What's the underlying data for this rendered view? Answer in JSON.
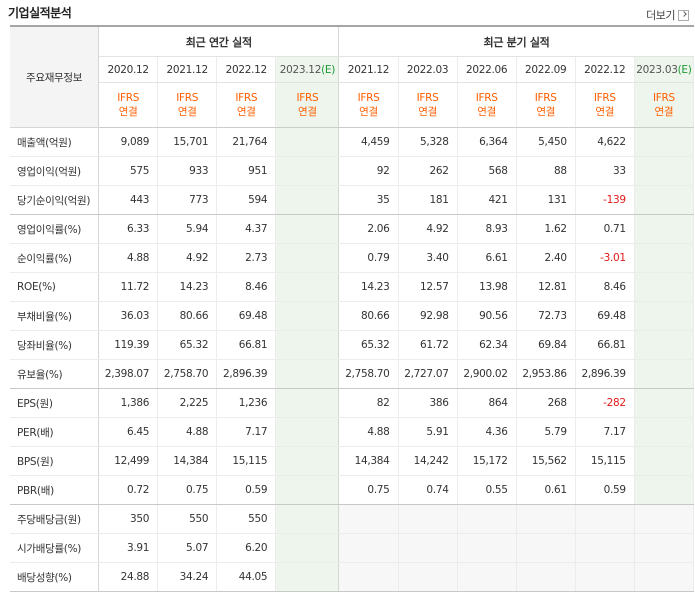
{
  "section_title": "기업실적분석",
  "more_label": "더보기",
  "header": {
    "side_label": "주요재무정보",
    "annual_group": "최근 연간 실적",
    "quarter_group": "최근 분기 실적",
    "annual_periods": [
      "2020.12",
      "2021.12",
      "2022.12",
      "2023.12"
    ],
    "annual_est_mark": "(E)",
    "quarter_periods": [
      "2021.12",
      "2022.03",
      "2022.06",
      "2022.09",
      "2022.12",
      "2023.03"
    ],
    "quarter_est_mark": "(E)",
    "ifrs_line1": "IFRS",
    "ifrs_line2": "연결"
  },
  "rows": [
    {
      "label": "매출액(억원)",
      "annual": [
        "9,089",
        "15,701",
        "21,764",
        ""
      ],
      "quarter": [
        "4,459",
        "5,328",
        "6,364",
        "5,450",
        "4,622",
        ""
      ]
    },
    {
      "label": "영업이익(억원)",
      "annual": [
        "575",
        "933",
        "951",
        ""
      ],
      "quarter": [
        "92",
        "262",
        "568",
        "88",
        "33",
        ""
      ]
    },
    {
      "label": "당기순이익(억원)",
      "annual": [
        "443",
        "773",
        "594",
        ""
      ],
      "quarter": [
        "35",
        "181",
        "421",
        "131",
        "-139",
        ""
      ]
    },
    {
      "label": "영업이익률(%)",
      "annual": [
        "6.33",
        "5.94",
        "4.37",
        ""
      ],
      "quarter": [
        "2.06",
        "4.92",
        "8.93",
        "1.62",
        "0.71",
        ""
      ]
    },
    {
      "label": "순이익률(%)",
      "annual": [
        "4.88",
        "4.92",
        "2.73",
        ""
      ],
      "quarter": [
        "0.79",
        "3.40",
        "6.61",
        "2.40",
        "-3.01",
        ""
      ]
    },
    {
      "label": "ROE(%)",
      "annual": [
        "11.72",
        "14.23",
        "8.46",
        ""
      ],
      "quarter": [
        "14.23",
        "12.57",
        "13.98",
        "12.81",
        "8.46",
        ""
      ]
    },
    {
      "label": "부채비율(%)",
      "annual": [
        "36.03",
        "80.66",
        "69.48",
        ""
      ],
      "quarter": [
        "80.66",
        "92.98",
        "90.56",
        "72.73",
        "69.48",
        ""
      ]
    },
    {
      "label": "당좌비율(%)",
      "annual": [
        "119.39",
        "65.32",
        "66.81",
        ""
      ],
      "quarter": [
        "65.32",
        "61.72",
        "62.34",
        "69.84",
        "66.81",
        ""
      ]
    },
    {
      "label": "유보율(%)",
      "annual": [
        "2,398.07",
        "2,758.70",
        "2,896.39",
        ""
      ],
      "quarter": [
        "2,758.70",
        "2,727.07",
        "2,900.02",
        "2,953.86",
        "2,896.39",
        ""
      ]
    },
    {
      "label": "EPS(원)",
      "annual": [
        "1,386",
        "2,225",
        "1,236",
        ""
      ],
      "quarter": [
        "82",
        "386",
        "864",
        "268",
        "-282",
        ""
      ]
    },
    {
      "label": "PER(배)",
      "annual": [
        "6.45",
        "4.88",
        "7.17",
        ""
      ],
      "quarter": [
        "4.88",
        "5.91",
        "4.36",
        "5.79",
        "7.17",
        ""
      ]
    },
    {
      "label": "BPS(원)",
      "annual": [
        "12,499",
        "14,384",
        "15,115",
        ""
      ],
      "quarter": [
        "14,384",
        "14,242",
        "15,172",
        "15,562",
        "15,115",
        ""
      ]
    },
    {
      "label": "PBR(배)",
      "annual": [
        "0.72",
        "0.75",
        "0.59",
        ""
      ],
      "quarter": [
        "0.75",
        "0.74",
        "0.55",
        "0.61",
        "0.59",
        ""
      ]
    },
    {
      "label": "주당배당금(원)",
      "annual": [
        "350",
        "550",
        "550",
        ""
      ],
      "quarter": null
    },
    {
      "label": "시가배당률(%)",
      "annual": [
        "3.91",
        "5.07",
        "6.20",
        ""
      ],
      "quarter": null
    },
    {
      "label": "배당성향(%)",
      "annual": [
        "24.88",
        "34.24",
        "44.05",
        ""
      ],
      "quarter": null
    }
  ],
  "colors": {
    "negative": "#e31a1a",
    "ifrs": "#ff5e00",
    "estimate_bg": "#eef5ec",
    "estimate_mark": "#1a9b34"
  }
}
